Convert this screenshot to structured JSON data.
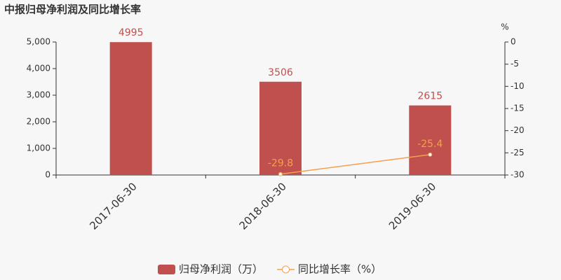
{
  "chart_data": {
    "type": "combo",
    "title": "中报归母净利润及同比增长率",
    "y2label": "%",
    "categories": [
      "2017-06-30",
      "2018-06-30",
      "2019-06-30"
    ],
    "series": [
      {
        "name": "归母净利润（万）",
        "type": "bar",
        "color": "#c0504d",
        "values": [
          4995,
          3506,
          2615
        ]
      },
      {
        "name": "同比增长率（%）",
        "type": "line",
        "axis": "y2",
        "color": "#f5a04c",
        "values": [
          null,
          -29.8,
          -25.4
        ]
      }
    ],
    "ylim": [
      0,
      5000
    ],
    "yticks": [
      0,
      {
        "value": 1000,
        "label": "1,000"
      },
      {
        "value": 2000,
        "label": "2,000"
      },
      {
        "value": 3000,
        "label": "3,000"
      },
      {
        "value": 4000,
        "label": "4,000"
      },
      {
        "value": 5000,
        "label": "5,000"
      }
    ],
    "y2lim": [
      -30,
      0
    ],
    "y2ticks": [
      0,
      -5,
      -10,
      -15,
      -20,
      -25,
      -30
    ],
    "legend": "bottom"
  }
}
